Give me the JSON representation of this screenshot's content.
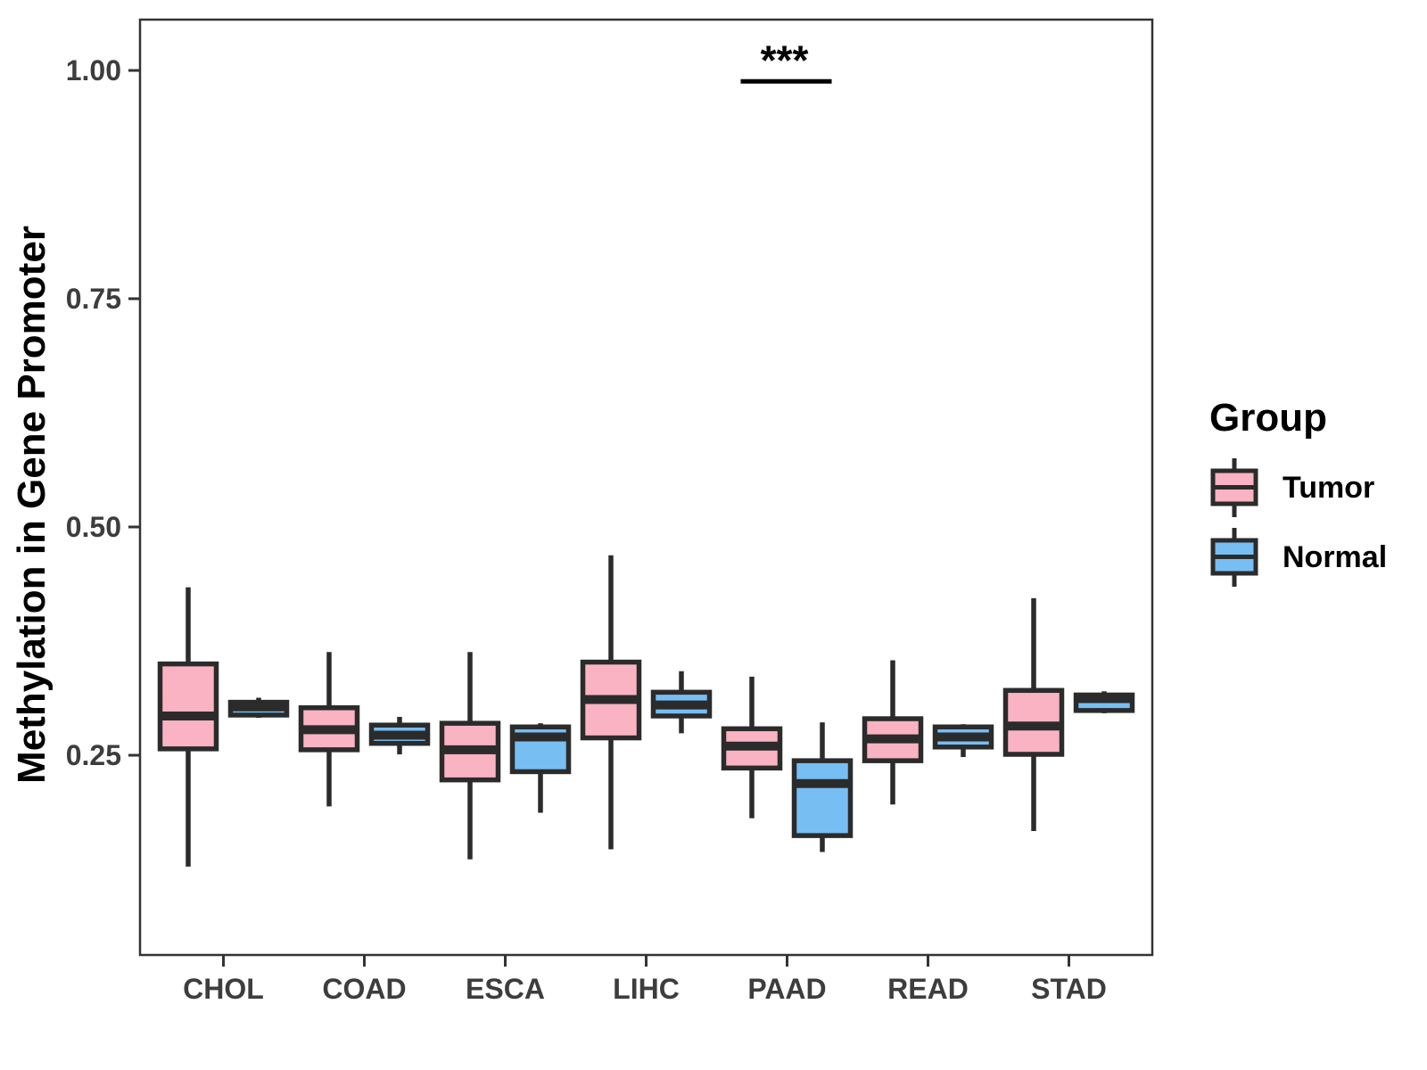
{
  "figure": {
    "y_axis_title": "Methylation in Gene Promoter",
    "legend": {
      "title": "Group",
      "items": [
        {
          "label": "Tumor",
          "color": "#FAB3C3"
        },
        {
          "label": "Normal",
          "color": "#77BEF3"
        }
      ]
    }
  },
  "style": {
    "tumor_fill": "#FAB3C3",
    "normal_fill": "#77BEF3",
    "box_stroke": "#2B2B2B",
    "panel_border": "#333333",
    "axis_color": "#333333",
    "tick_label_color": "#3D3D3D",
    "annotation_color": "#000000",
    "background": "#FFFFFF"
  },
  "chart_data": {
    "type": "boxplot",
    "title": "",
    "xlabel": "",
    "ylabel": "Methylation in Gene Promoter",
    "categories": [
      "CHOL",
      "COAD",
      "ESCA",
      "LIHC",
      "PAAD",
      "READ",
      "STAD"
    ],
    "y_ticks": [
      {
        "label": "1.00",
        "value": 1.0
      },
      {
        "label": "0.75",
        "value": 0.75
      },
      {
        "label": "0.50",
        "value": 0.5
      },
      {
        "label": "0.25",
        "value": 0.25
      }
    ],
    "ylim": [
      0.03,
      1.06
    ],
    "grid": false,
    "legend_position": "right",
    "series": [
      {
        "name": "Tumor",
        "color": "#FAB3C3",
        "boxes": [
          {
            "category": "CHOL",
            "whisker_low": 0.128,
            "q1": 0.257,
            "median": 0.293,
            "q3": 0.35,
            "whisker_high": 0.434
          },
          {
            "category": "COAD",
            "whisker_low": 0.194,
            "q1": 0.256,
            "median": 0.278,
            "q3": 0.302,
            "whisker_high": 0.363
          },
          {
            "category": "ESCA",
            "whisker_low": 0.136,
            "q1": 0.223,
            "median": 0.256,
            "q3": 0.285,
            "whisker_high": 0.363
          },
          {
            "category": "LIHC",
            "whisker_low": 0.147,
            "q1": 0.269,
            "median": 0.311,
            "q3": 0.352,
            "whisker_high": 0.469
          },
          {
            "category": "PAAD",
            "whisker_low": 0.181,
            "q1": 0.236,
            "median": 0.26,
            "q3": 0.279,
            "whisker_high": 0.336
          },
          {
            "category": "READ",
            "whisker_low": 0.196,
            "q1": 0.244,
            "median": 0.268,
            "q3": 0.29,
            "whisker_high": 0.354
          },
          {
            "category": "STAD",
            "whisker_low": 0.167,
            "q1": 0.251,
            "median": 0.282,
            "q3": 0.321,
            "whisker_high": 0.422
          }
        ]
      },
      {
        "name": "Normal",
        "color": "#77BEF3",
        "boxes": [
          {
            "category": "CHOL",
            "whisker_low": 0.291,
            "q1": 0.294,
            "median": 0.303,
            "q3": 0.308,
            "whisker_high": 0.313
          },
          {
            "category": "COAD",
            "whisker_low": 0.251,
            "q1": 0.263,
            "median": 0.272,
            "q3": 0.283,
            "whisker_high": 0.292
          },
          {
            "category": "ESCA",
            "whisker_low": 0.187,
            "q1": 0.232,
            "median": 0.27,
            "q3": 0.281,
            "whisker_high": 0.285
          },
          {
            "category": "LIHC",
            "whisker_low": 0.274,
            "q1": 0.293,
            "median": 0.305,
            "q3": 0.319,
            "whisker_high": 0.342
          },
          {
            "category": "PAAD",
            "whisker_low": 0.144,
            "q1": 0.162,
            "median": 0.219,
            "q3": 0.244,
            "whisker_high": 0.286
          },
          {
            "category": "READ",
            "whisker_low": 0.248,
            "q1": 0.259,
            "median": 0.27,
            "q3": 0.281,
            "whisker_high": 0.284
          },
          {
            "category": "STAD",
            "whisker_low": 0.296,
            "q1": 0.299,
            "median": 0.312,
            "q3": 0.316,
            "whisker_high": 0.32
          }
        ]
      }
    ],
    "annotations": [
      {
        "text": "***",
        "category": "PAAD",
        "bar_y": 0.988
      }
    ]
  }
}
